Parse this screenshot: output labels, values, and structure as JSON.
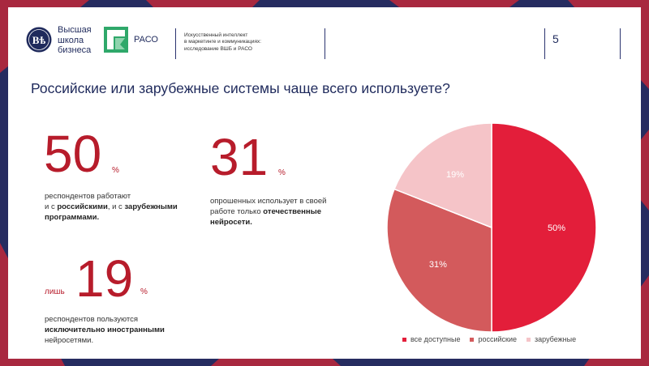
{
  "header": {
    "hse_logo_lines": [
      "Высшая",
      "школа",
      "бизнеса"
    ],
    "raso_logo_text": "РАСО",
    "description_lines": [
      "Искусственный интеллект",
      "в маркетинге и коммуникациях:",
      "исследование ВШБ и РАСО"
    ],
    "page_number": "5"
  },
  "question": "Российские или зарубежные системы чаще всего используете?",
  "stats": {
    "s50": {
      "value": "50",
      "unit": "%",
      "caption_line1": "респондентов работают",
      "caption_line2_pre": "и с ",
      "caption_line2_b1": "российскими",
      "caption_line2_mid": ", и с ",
      "caption_line2_b2": "зарубежными",
      "caption_line3_b": "программами."
    },
    "s31": {
      "value": "31",
      "unit": "%",
      "caption_line1": "опрошенных использует в своей",
      "caption_line2_pre": "работе только ",
      "caption_line2_b": "отечественные",
      "caption_line3_b": "нейросети."
    },
    "s19": {
      "prefix": "лишь",
      "value": "19",
      "unit": "%",
      "caption_line1": "респондентов пользуются",
      "caption_line2_b": "исключительно иностранными",
      "caption_line3": "нейросетями."
    }
  },
  "chart_data": {
    "type": "pie",
    "categories": [
      "все доступные",
      "российские",
      "зарубежные"
    ],
    "values": [
      50,
      31,
      19
    ],
    "labels": [
      "50%",
      "31%",
      "19%"
    ],
    "colors": [
      "#e31e3a",
      "#d35a5c",
      "#f5c4c8"
    ],
    "start": "12 o'clock",
    "direction": "clockwise",
    "legend_position": "bottom",
    "title": ""
  },
  "colors": {
    "accent_red": "#b71c2b",
    "navy": "#1f2a5c",
    "frame_maroon": "#a8283f",
    "frame_navy": "#262c60"
  }
}
